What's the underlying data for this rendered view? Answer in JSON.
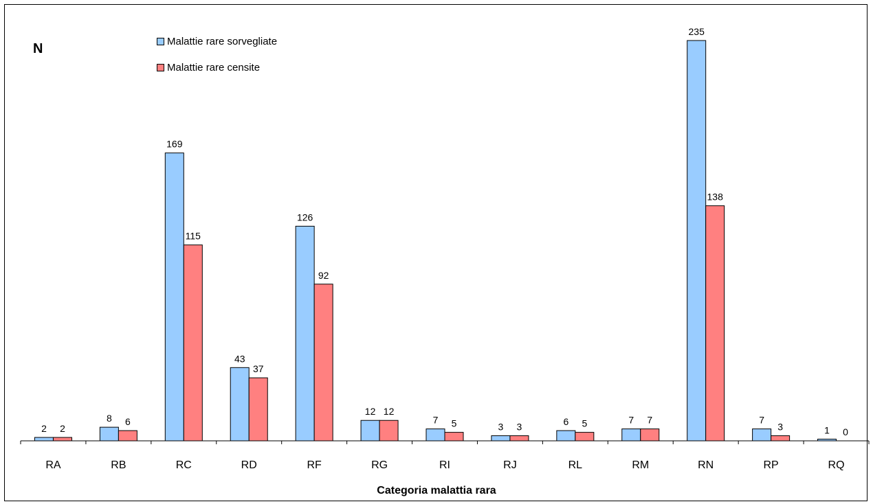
{
  "chart_data": {
    "type": "bar",
    "title": "",
    "ylabel": "N",
    "xlabel": "Categoria malattia rara",
    "categories": [
      "RA",
      "RB",
      "RC",
      "RD",
      "RF",
      "RG",
      "RI",
      "RJ",
      "RL",
      "RM",
      "RN",
      "RP",
      "RQ"
    ],
    "series": [
      {
        "name": "Malattie rare sorvegliate",
        "color": "#99ccff",
        "values": [
          2,
          8,
          169,
          43,
          126,
          12,
          7,
          3,
          6,
          7,
          235,
          7,
          1
        ]
      },
      {
        "name": "Malattie rare censite",
        "color": "#ff8080",
        "values": [
          2,
          6,
          115,
          37,
          92,
          12,
          5,
          3,
          5,
          7,
          138,
          3,
          0
        ]
      }
    ],
    "ylim": [
      0,
      235
    ],
    "grid": false,
    "legend_position": "top-left",
    "data_labels": true
  }
}
